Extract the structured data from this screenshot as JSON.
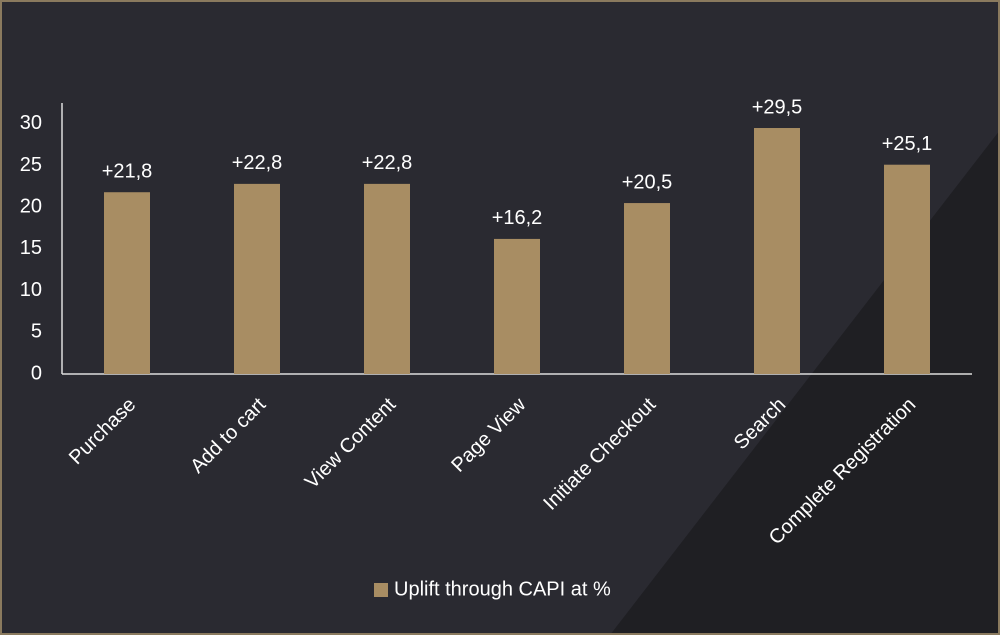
{
  "chart_data": {
    "type": "bar",
    "categories": [
      "Purchase",
      "Add to cart",
      "View Content",
      "Page View",
      "Initiate Checkout",
      "Search",
      "Complete Registration"
    ],
    "series": [
      {
        "name": "Uplift through CAPI at %",
        "color": "#a88d63",
        "values": [
          21.8,
          22.8,
          22.8,
          16.2,
          20.5,
          29.5,
          25.1
        ],
        "value_labels": [
          "+21,8",
          "+22,8",
          "+22,8",
          "+16,2",
          "+20,5",
          "+29,5",
          "+25,1"
        ]
      }
    ],
    "ylim": [
      0,
      32.5
    ],
    "yticks": [
      0,
      5,
      10,
      15,
      20,
      25,
      30
    ],
    "grid": false,
    "legend": "bottom"
  }
}
